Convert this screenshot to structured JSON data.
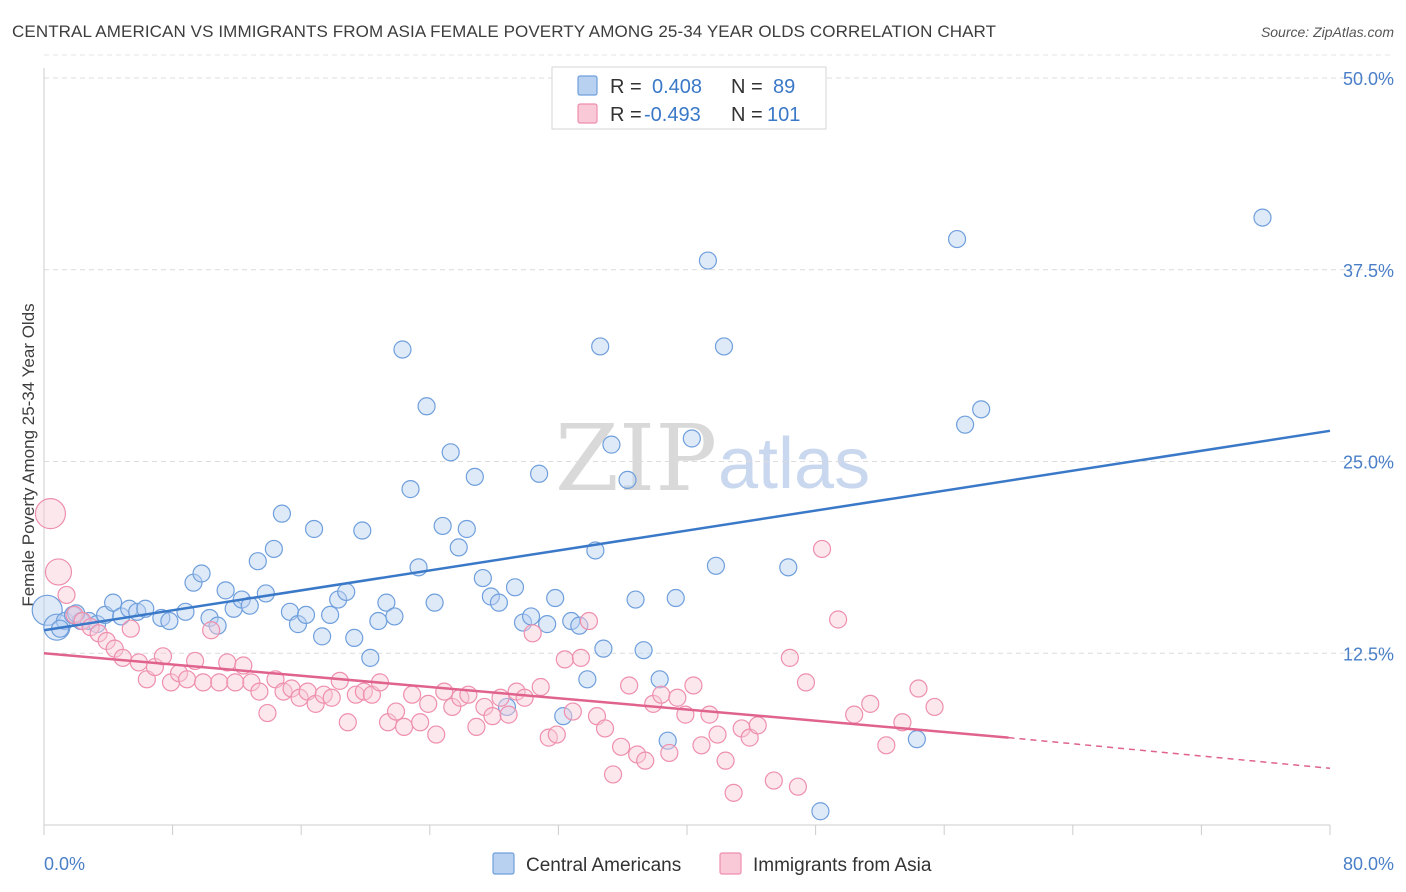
{
  "header": {
    "title": "CENTRAL AMERICAN VS IMMIGRANTS FROM ASIA FEMALE POVERTY AMONG 25-34 YEAR OLDS CORRELATION CHART",
    "source": "Source: ZipAtlas.com"
  },
  "watermark": {
    "zip": "ZIP",
    "atlas": "atlas"
  },
  "legend": {
    "rows": [
      {
        "r_label": "R =",
        "r_value": "0.408",
        "n_label": "N =",
        "n_value": "89",
        "color": "#6f9fdc"
      },
      {
        "r_label": "R =",
        "r_value": "-0.493",
        "n_label": "N =",
        "n_value": "101",
        "color": "#ee8fae"
      }
    ]
  },
  "chart_data": {
    "type": "scatter",
    "title": "CENTRAL AMERICAN VS IMMIGRANTS FROM ASIA FEMALE POVERTY AMONG 25-34 YEAR OLDS CORRELATION CHART",
    "ylabel": "Female Poverty Among 25-34 Year Olds",
    "xlabel": "",
    "xlim": [
      0,
      80
    ],
    "ylim": [
      0,
      50
    ],
    "x_ticks": [
      "0.0%",
      "80.0%"
    ],
    "y_ticks": [
      "12.5%",
      "25.0%",
      "37.5%",
      "50.0%"
    ],
    "grid": true,
    "legend_position": "top-center",
    "series": [
      {
        "name": "Central Americans",
        "color": "#6f9fdc",
        "line_color": "#3a78c8",
        "trend": {
          "x0": 0,
          "y0": 14.0,
          "x1": 80,
          "y1": 27.0
        },
        "points": [
          [
            0.2,
            15.3
          ],
          [
            0.8,
            14.2
          ],
          [
            1.3,
            14.6
          ],
          [
            1.8,
            15.0
          ],
          [
            2.3,
            14.6
          ],
          [
            2.8,
            14.6
          ],
          [
            3.3,
            14.4
          ],
          [
            3.8,
            15.0
          ],
          [
            4.3,
            15.8
          ],
          [
            4.8,
            14.9
          ],
          [
            5.3,
            15.4
          ],
          [
            5.8,
            15.2
          ],
          [
            6.3,
            15.4
          ],
          [
            7.3,
            14.8
          ],
          [
            7.8,
            14.6
          ],
          [
            8.8,
            15.2
          ],
          [
            9.3,
            17.1
          ],
          [
            9.8,
            17.7
          ],
          [
            10.3,
            14.8
          ],
          [
            10.8,
            14.3
          ],
          [
            11.3,
            16.6
          ],
          [
            11.8,
            15.4
          ],
          [
            12.3,
            16.0
          ],
          [
            12.8,
            15.6
          ],
          [
            13.3,
            18.5
          ],
          [
            13.8,
            16.4
          ],
          [
            14.3,
            19.3
          ],
          [
            14.8,
            21.6
          ],
          [
            15.3,
            15.2
          ],
          [
            15.8,
            14.4
          ],
          [
            16.3,
            15.0
          ],
          [
            16.8,
            20.6
          ],
          [
            17.3,
            13.6
          ],
          [
            17.8,
            15.0
          ],
          [
            18.3,
            16.0
          ],
          [
            18.8,
            16.5
          ],
          [
            19.3,
            13.5
          ],
          [
            19.8,
            20.5
          ],
          [
            20.3,
            12.2
          ],
          [
            20.8,
            14.6
          ],
          [
            21.3,
            15.8
          ],
          [
            21.8,
            14.9
          ],
          [
            22.3,
            32.3
          ],
          [
            22.8,
            23.2
          ],
          [
            23.3,
            18.1
          ],
          [
            23.8,
            28.6
          ],
          [
            24.3,
            15.8
          ],
          [
            24.8,
            20.8
          ],
          [
            25.3,
            25.6
          ],
          [
            25.8,
            19.4
          ],
          [
            26.3,
            20.6
          ],
          [
            26.8,
            24.0
          ],
          [
            27.3,
            17.4
          ],
          [
            27.8,
            16.2
          ],
          [
            28.3,
            15.8
          ],
          [
            28.8,
            9.0
          ],
          [
            29.3,
            16.8
          ],
          [
            29.8,
            14.5
          ],
          [
            30.3,
            14.9
          ],
          [
            30.8,
            24.2
          ],
          [
            31.3,
            14.4
          ],
          [
            31.8,
            16.1
          ],
          [
            32.3,
            8.4
          ],
          [
            32.8,
            14.6
          ],
          [
            33.3,
            14.3
          ],
          [
            33.8,
            10.8
          ],
          [
            34.3,
            19.2
          ],
          [
            34.6,
            32.5
          ],
          [
            34.8,
            12.8
          ],
          [
            35.3,
            26.1
          ],
          [
            36.3,
            23.8
          ],
          [
            36.8,
            16.0
          ],
          [
            37.3,
            12.7
          ],
          [
            38.3,
            10.8
          ],
          [
            38.8,
            6.8
          ],
          [
            39.3,
            16.1
          ],
          [
            40.3,
            26.5
          ],
          [
            41.3,
            38.1
          ],
          [
            41.8,
            18.2
          ],
          [
            42.3,
            32.5
          ],
          [
            46.3,
            18.1
          ],
          [
            48.3,
            2.2
          ],
          [
            54.3,
            6.9
          ],
          [
            56.8,
            39.5
          ],
          [
            57.3,
            27.4
          ],
          [
            58.3,
            28.4
          ],
          [
            75.8,
            40.9
          ],
          [
            1.0,
            14.1
          ],
          [
            2.0,
            15.1
          ]
        ]
      },
      {
        "name": "Immigrants from Asia",
        "color": "#ee8fae",
        "line_color": "#e0638e",
        "trend": {
          "x0": 0,
          "y0": 12.5,
          "x1": 60,
          "y1": 7.0
        },
        "trend_dash": {
          "x0": 60,
          "y0": 7.0,
          "x1": 80,
          "y1": 5.0
        },
        "points": [
          [
            0.4,
            21.6
          ],
          [
            0.9,
            17.8
          ],
          [
            1.4,
            16.3
          ],
          [
            1.9,
            15.0
          ],
          [
            2.4,
            14.6
          ],
          [
            2.9,
            14.2
          ],
          [
            3.4,
            13.8
          ],
          [
            3.9,
            13.3
          ],
          [
            4.4,
            12.8
          ],
          [
            4.9,
            12.2
          ],
          [
            5.4,
            14.1
          ],
          [
            5.9,
            11.9
          ],
          [
            6.4,
            10.8
          ],
          [
            6.9,
            11.6
          ],
          [
            7.4,
            12.3
          ],
          [
            7.9,
            10.6
          ],
          [
            8.4,
            11.2
          ],
          [
            8.9,
            10.8
          ],
          [
            9.4,
            12.0
          ],
          [
            9.9,
            10.6
          ],
          [
            10.4,
            14.0
          ],
          [
            10.9,
            10.6
          ],
          [
            11.4,
            11.9
          ],
          [
            11.9,
            10.6
          ],
          [
            12.4,
            11.7
          ],
          [
            12.9,
            10.6
          ],
          [
            13.4,
            10.0
          ],
          [
            13.9,
            8.6
          ],
          [
            14.4,
            10.8
          ],
          [
            14.9,
            10.0
          ],
          [
            15.4,
            10.2
          ],
          [
            15.9,
            9.6
          ],
          [
            16.4,
            10.0
          ],
          [
            16.9,
            9.2
          ],
          [
            17.4,
            9.8
          ],
          [
            17.9,
            9.6
          ],
          [
            18.4,
            10.7
          ],
          [
            18.9,
            8.0
          ],
          [
            19.4,
            9.8
          ],
          [
            19.9,
            10.0
          ],
          [
            20.4,
            9.8
          ],
          [
            20.9,
            10.6
          ],
          [
            21.4,
            8.0
          ],
          [
            21.9,
            8.7
          ],
          [
            22.4,
            7.7
          ],
          [
            22.9,
            9.8
          ],
          [
            23.4,
            8.0
          ],
          [
            23.9,
            9.2
          ],
          [
            24.4,
            7.2
          ],
          [
            24.9,
            10.0
          ],
          [
            25.4,
            9.0
          ],
          [
            25.9,
            9.6
          ],
          [
            26.4,
            9.8
          ],
          [
            26.9,
            7.7
          ],
          [
            27.4,
            9.0
          ],
          [
            27.9,
            8.4
          ],
          [
            28.4,
            9.6
          ],
          [
            28.9,
            8.5
          ],
          [
            29.4,
            10.0
          ],
          [
            29.9,
            9.6
          ],
          [
            30.4,
            13.8
          ],
          [
            30.9,
            10.3
          ],
          [
            31.4,
            7.0
          ],
          [
            31.9,
            7.2
          ],
          [
            32.4,
            12.1
          ],
          [
            32.9,
            8.7
          ],
          [
            33.4,
            12.2
          ],
          [
            33.9,
            14.6
          ],
          [
            34.4,
            8.4
          ],
          [
            34.9,
            7.6
          ],
          [
            35.4,
            4.6
          ],
          [
            35.9,
            6.4
          ],
          [
            36.4,
            10.4
          ],
          [
            36.9,
            5.9
          ],
          [
            37.4,
            5.5
          ],
          [
            37.9,
            9.2
          ],
          [
            38.4,
            9.8
          ],
          [
            38.9,
            6.0
          ],
          [
            39.4,
            9.6
          ],
          [
            39.9,
            8.5
          ],
          [
            40.4,
            10.4
          ],
          [
            40.9,
            6.5
          ],
          [
            41.4,
            8.5
          ],
          [
            41.9,
            7.2
          ],
          [
            42.4,
            5.5
          ],
          [
            42.9,
            3.4
          ],
          [
            43.4,
            7.6
          ],
          [
            43.9,
            7.0
          ],
          [
            44.4,
            7.8
          ],
          [
            45.4,
            4.2
          ],
          [
            46.4,
            12.2
          ],
          [
            46.9,
            3.8
          ],
          [
            47.4,
            10.6
          ],
          [
            48.4,
            19.3
          ],
          [
            49.4,
            14.7
          ],
          [
            50.4,
            8.5
          ],
          [
            51.4,
            9.2
          ],
          [
            52.4,
            6.5
          ],
          [
            53.4,
            8.0
          ],
          [
            54.4,
            10.2
          ],
          [
            55.4,
            9.0
          ]
        ]
      }
    ]
  },
  "bottom_legend": {
    "items": [
      {
        "label": "Central Americans",
        "color": "#6f9fdc"
      },
      {
        "label": "Immigrants from Asia",
        "color": "#ee8fae"
      }
    ]
  }
}
